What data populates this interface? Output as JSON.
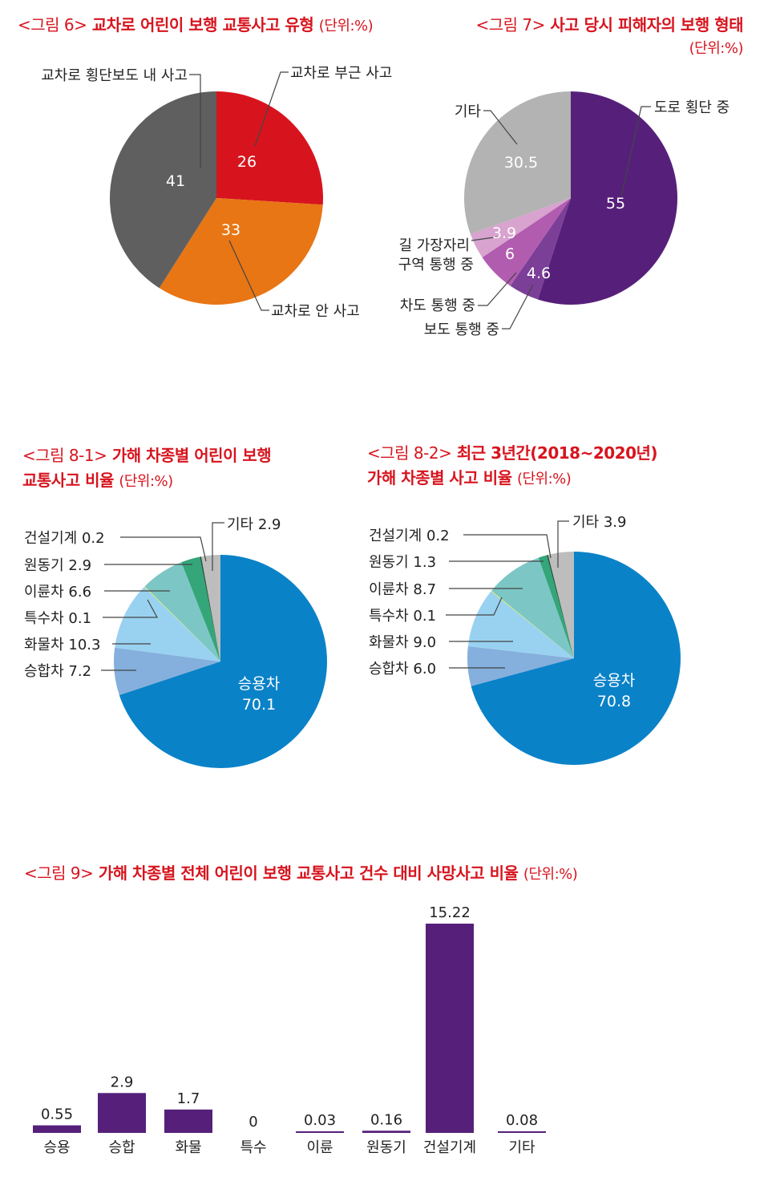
{
  "colors": {
    "title": "#d7141e",
    "purple": "#56207a",
    "blue": "#0a82c8"
  },
  "fig6": {
    "fig": "<그림 6>",
    "title": "교차로 어린이 보행 교통사고 유형",
    "unit": "(단위:%)"
  },
  "fig7": {
    "fig": "<그림 7>",
    "title": "사고 당시 피해자의 보행 형태",
    "unit": "(단위:%)"
  },
  "fig81": {
    "fig": "<그림 8-1>",
    "title_line1": "가해 차종별 어린이 보행",
    "title_line2": "교통사고 비율",
    "unit": "(단위:%)"
  },
  "fig82": {
    "fig": "<그림 8-2>",
    "title_line1": "최근 3년간(2018~2020년)",
    "title_line2": "가해 차종별 사고 비율",
    "unit": "(단위:%)"
  },
  "fig9": {
    "fig": "<그림 9>",
    "title": "가해 차종별 전체 어린이 보행 교통사고 건수 대비 사망사고 비율",
    "unit": "(단위:%)"
  },
  "chart_data": [
    {
      "id": "fig6",
      "type": "pie",
      "title": "교차로 어린이 보행 교통사고 유형",
      "unit": "%",
      "slices": [
        {
          "label": "교차로 부근 사고",
          "value": 26,
          "color": "#d7141e"
        },
        {
          "label": "교차로 안 사고",
          "value": 33,
          "color": "#e87614"
        },
        {
          "label": "교차로 횡단보도 내 사고",
          "value": 41,
          "color": "#5f5f5f"
        }
      ]
    },
    {
      "id": "fig7",
      "type": "pie",
      "title": "사고 당시 피해자의 보행 형태",
      "unit": "%",
      "slices": [
        {
          "label": "도로 횡단 중",
          "value": 55,
          "color": "#56207a"
        },
        {
          "label": "보도 통행 중",
          "value": 4.6,
          "color": "#7b3f98"
        },
        {
          "label": "차도 통행 중",
          "value": 6,
          "color": "#b25cb0"
        },
        {
          "label": "길 가장자리 구역 통행 중",
          "value": 3.9,
          "color": "#d8a3cf"
        },
        {
          "label": "기타",
          "value": 30.5,
          "color": "#b3b3b3"
        }
      ]
    },
    {
      "id": "fig8_1",
      "type": "pie",
      "title": "가해 차종별 어린이 보행 교통사고 비율",
      "unit": "%",
      "slices": [
        {
          "label": "승용차",
          "value": 70.1,
          "color": "#0a82c8"
        },
        {
          "label": "승합차",
          "value": 7.2,
          "color": "#85afdc"
        },
        {
          "label": "화물차",
          "value": 10.3,
          "color": "#99d2f1"
        },
        {
          "label": "특수차",
          "value": 0.1,
          "color": "#f3ee3e"
        },
        {
          "label": "이륜차",
          "value": 6.6,
          "color": "#7cc7c5"
        },
        {
          "label": "원동기",
          "value": 2.9,
          "color": "#35a57a"
        },
        {
          "label": "건설기계",
          "value": 0.2,
          "color": "#1f4d35"
        },
        {
          "label": "기타",
          "value": 2.9,
          "color": "#bdbdbd"
        }
      ]
    },
    {
      "id": "fig8_2",
      "type": "pie",
      "title": "최근 3년간(2018~2020년) 가해 차종별 사고 비율",
      "unit": "%",
      "slices": [
        {
          "label": "승용차",
          "value": 70.8,
          "color": "#0a82c8"
        },
        {
          "label": "승합차",
          "value": 6.0,
          "color": "#85afdc"
        },
        {
          "label": "화물차",
          "value": 9.0,
          "color": "#99d2f1"
        },
        {
          "label": "특수차",
          "value": 0.1,
          "color": "#f3ee3e"
        },
        {
          "label": "이륜차",
          "value": 8.7,
          "color": "#7cc7c5"
        },
        {
          "label": "원동기",
          "value": 1.3,
          "color": "#35a57a"
        },
        {
          "label": "건설기계",
          "value": 0.2,
          "color": "#1f4d35"
        },
        {
          "label": "기타",
          "value": 3.9,
          "color": "#bdbdbd"
        }
      ]
    },
    {
      "id": "fig9",
      "type": "bar",
      "title": "가해 차종별 전체 어린이 보행 교통사고 건수 대비 사망사고 비율",
      "unit": "%",
      "categories": [
        "승용",
        "승합",
        "화물",
        "특수",
        "이륜",
        "원동기",
        "건설기계",
        "기타"
      ],
      "values": [
        0.55,
        2.9,
        1.7,
        0,
        0.03,
        0.16,
        15.22,
        0.08
      ],
      "value_labels": [
        "0.55",
        "2.9",
        "1.7",
        "0",
        "0.03",
        "0.16",
        "15.22",
        "0.08"
      ],
      "color": "#56207a"
    }
  ]
}
